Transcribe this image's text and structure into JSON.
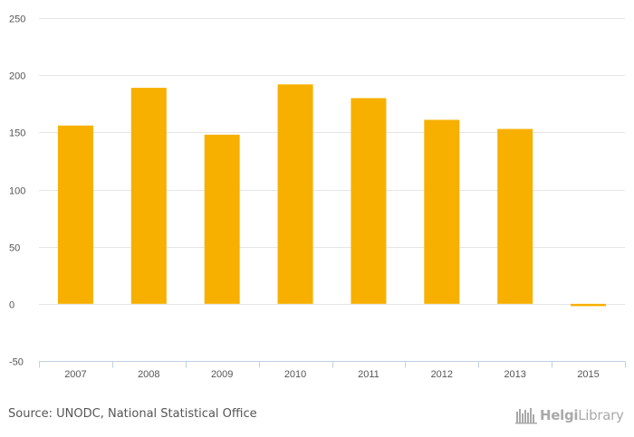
{
  "chart_data": {
    "type": "bar",
    "categories": [
      "2007",
      "2008",
      "2009",
      "2010",
      "2011",
      "2012",
      "2013",
      "2015"
    ],
    "values": [
      156,
      189,
      148,
      192,
      180,
      161,
      153,
      -2
    ],
    "ylim": [
      -50,
      250
    ],
    "yticks": [
      -50,
      0,
      50,
      100,
      150,
      200,
      250
    ],
    "grid": true,
    "bar_color": "#f7b000"
  },
  "footer": {
    "source": "Source: UNODC, National Statistical Office",
    "logo_text_bold": "Helgi",
    "logo_text_regular": "Library"
  },
  "colors": {
    "grid": "#e6e6e6",
    "axis": "#c0d0e0",
    "text": "#555555",
    "logo": "#a9a9a9"
  }
}
